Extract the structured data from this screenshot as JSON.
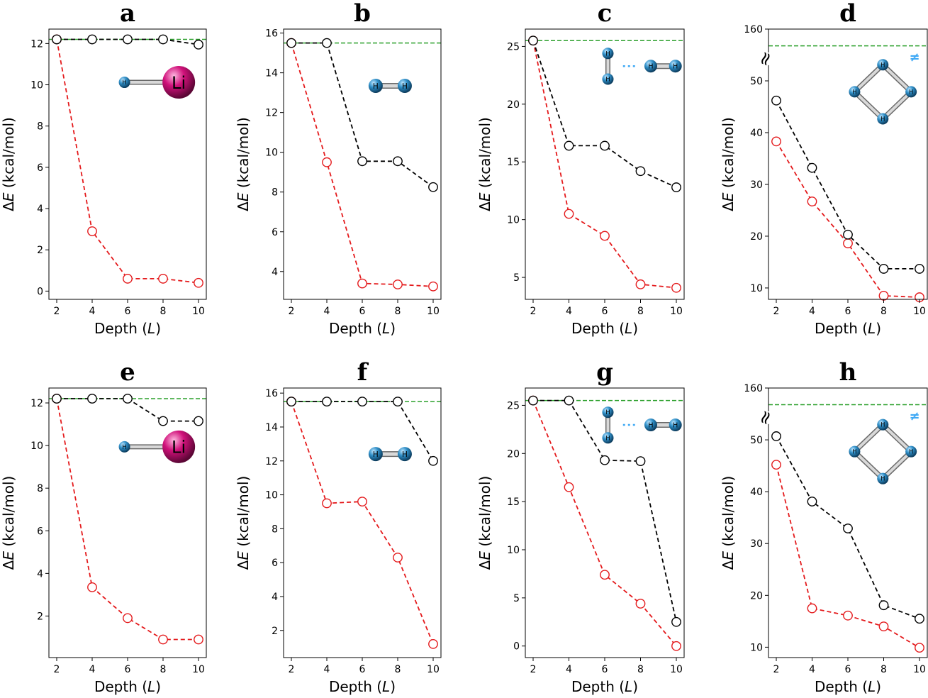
{
  "colors": {
    "series_a": "#e41a1c",
    "series_b": "#000000",
    "reference": "#2ca02c",
    "atom_h": "#2f8fc8",
    "atom_li": "#d0107a",
    "ts_mark": "#3fa9f5"
  },
  "chart_data": [
    {
      "type": "line",
      "panel": "a",
      "title": "a",
      "xlabel": "Depth (L)",
      "ylabel": "ΔE (kcal/mol)",
      "x": [
        2,
        4,
        6,
        8,
        10
      ],
      "xticks": [
        "2",
        "4",
        "6",
        "8",
        "10"
      ],
      "ylim": [
        -0.4,
        12.7
      ],
      "yticks": [
        0,
        2,
        4,
        6,
        8,
        10,
        12
      ],
      "ytick_labels": [
        "0",
        "2",
        "4",
        "6",
        "8",
        "10",
        "12"
      ],
      "reference_line": 12.2,
      "series": [
        {
          "name": "red",
          "values": [
            12.2,
            2.9,
            0.6,
            0.6,
            0.4
          ]
        },
        {
          "name": "black",
          "values": [
            12.2,
            12.2,
            12.2,
            12.2,
            11.95
          ]
        }
      ],
      "molecule": "LiH",
      "atom_labels": [
        "H",
        "Li"
      ]
    },
    {
      "type": "line",
      "panel": "b",
      "title": "b",
      "xlabel": "Depth (L)",
      "ylabel": "ΔE (kcal/mol)",
      "x": [
        2,
        4,
        6,
        8,
        10
      ],
      "xticks": [
        "2",
        "4",
        "6",
        "8",
        "10"
      ],
      "ylim": [
        2.6,
        16.2
      ],
      "yticks": [
        4,
        6,
        8,
        10,
        12,
        14,
        16
      ],
      "ytick_labels": [
        "4",
        "6",
        "8",
        "10",
        "12",
        "14",
        "16"
      ],
      "reference_line": 15.5,
      "series": [
        {
          "name": "red",
          "values": [
            15.5,
            9.5,
            3.4,
            3.35,
            3.25
          ]
        },
        {
          "name": "black",
          "values": [
            15.5,
            15.5,
            9.55,
            9.55,
            8.25
          ]
        }
      ],
      "molecule": "H2",
      "atom_labels": [
        "H",
        "H"
      ]
    },
    {
      "type": "line",
      "panel": "c",
      "title": "c",
      "xlabel": "Depth (L)",
      "ylabel": "ΔE (kcal/mol)",
      "x": [
        2,
        4,
        6,
        8,
        10
      ],
      "xticks": [
        "2",
        "4",
        "6",
        "8",
        "10"
      ],
      "ylim": [
        3.1,
        26.5
      ],
      "yticks": [
        5,
        10,
        15,
        20,
        25
      ],
      "ytick_labels": [
        "5",
        "10",
        "15",
        "20",
        "25"
      ],
      "reference_line": 25.5,
      "series": [
        {
          "name": "red",
          "values": [
            25.5,
            10.5,
            8.6,
            4.4,
            4.1
          ]
        },
        {
          "name": "black",
          "values": [
            25.5,
            16.4,
            16.4,
            14.2,
            12.8
          ]
        }
      ],
      "molecule": "H2...H2",
      "atom_labels": [
        "H",
        "H",
        "H",
        "H"
      ]
    },
    {
      "type": "line",
      "panel": "d",
      "title": "d",
      "xlabel": "Depth (L)",
      "ylabel": "ΔE (kcal/mol)",
      "x": [
        2,
        4,
        6,
        8,
        10
      ],
      "xticks": [
        "2",
        "4",
        "6",
        "8",
        "10"
      ],
      "ylim": [
        7.8,
        60
      ],
      "yticks": [
        10,
        20,
        30,
        40,
        50
      ],
      "ytick_labels": [
        "10",
        "20",
        "30",
        "40",
        "50"
      ],
      "broken_top_label": "160",
      "broken_axis_marker": "≈",
      "reference_value": 157.5,
      "ts_mark": "≠",
      "series": [
        {
          "name": "red",
          "values": [
            38.3,
            26.7,
            18.6,
            8.5,
            8.2
          ]
        },
        {
          "name": "black",
          "values": [
            46.2,
            33.2,
            20.3,
            13.7,
            13.7
          ]
        }
      ],
      "molecule": "H4 square",
      "atom_labels": [
        "H",
        "H",
        "H",
        "H"
      ]
    },
    {
      "type": "line",
      "panel": "e",
      "title": "e",
      "xlabel": "Depth (L)",
      "ylabel": "ΔE (kcal/mol)",
      "x": [
        2,
        4,
        6,
        8,
        10
      ],
      "xticks": [
        "2",
        "4",
        "6",
        "8",
        "10"
      ],
      "ylim": [
        0.05,
        12.7
      ],
      "yticks": [
        2,
        4,
        6,
        8,
        10,
        12
      ],
      "ytick_labels": [
        "2",
        "4",
        "6",
        "8",
        "10",
        "12"
      ],
      "reference_line": 12.2,
      "series": [
        {
          "name": "red",
          "values": [
            12.2,
            3.35,
            1.9,
            0.9,
            0.9
          ]
        },
        {
          "name": "black",
          "values": [
            12.2,
            12.2,
            12.2,
            11.15,
            11.15
          ]
        }
      ],
      "molecule": "LiH",
      "atom_labels": [
        "H",
        "Li"
      ]
    },
    {
      "type": "line",
      "panel": "f",
      "title": "f",
      "xlabel": "Depth (L)",
      "ylabel": "ΔE (kcal/mol)",
      "x": [
        2,
        4,
        6,
        8,
        10
      ],
      "xticks": [
        "2",
        "4",
        "6",
        "8",
        "10"
      ],
      "ylim": [
        0.4,
        16.3
      ],
      "yticks": [
        2,
        4,
        6,
        8,
        10,
        12,
        14,
        16
      ],
      "ytick_labels": [
        "2",
        "4",
        "6",
        "8",
        "10",
        "12",
        "14",
        "16"
      ],
      "reference_line": 15.5,
      "series": [
        {
          "name": "red",
          "values": [
            15.5,
            9.5,
            9.6,
            6.3,
            1.2
          ]
        },
        {
          "name": "black",
          "values": [
            15.5,
            15.5,
            15.5,
            15.5,
            12.0
          ]
        }
      ],
      "molecule": "H2",
      "atom_labels": [
        "H",
        "H"
      ]
    },
    {
      "type": "line",
      "panel": "g",
      "title": "g",
      "xlabel": "Depth (L)",
      "ylabel": "ΔE (kcal/mol)",
      "x": [
        2,
        4,
        6,
        8,
        10
      ],
      "xticks": [
        "2",
        "4",
        "6",
        "8",
        "10"
      ],
      "ylim": [
        -1.2,
        26.8
      ],
      "yticks": [
        0,
        5,
        10,
        15,
        20,
        25
      ],
      "ytick_labels": [
        "0",
        "5",
        "10",
        "15",
        "20",
        "25"
      ],
      "reference_line": 25.5,
      "series": [
        {
          "name": "red",
          "values": [
            25.5,
            16.5,
            7.4,
            4.4,
            0.0
          ]
        },
        {
          "name": "black",
          "values": [
            25.5,
            25.5,
            19.3,
            19.2,
            2.5
          ]
        }
      ],
      "molecule": "H2...H2",
      "atom_labels": [
        "H",
        "H",
        "H",
        "H"
      ]
    },
    {
      "type": "line",
      "panel": "h",
      "title": "h",
      "xlabel": "Depth (L)",
      "ylabel": "ΔE (kcal/mol)",
      "x": [
        2,
        4,
        6,
        8,
        10
      ],
      "xticks": [
        "2",
        "4",
        "6",
        "8",
        "10"
      ],
      "ylim": [
        8.0,
        60
      ],
      "yticks": [
        10,
        20,
        30,
        40,
        50
      ],
      "ytick_labels": [
        "10",
        "20",
        "30",
        "40",
        "50"
      ],
      "broken_top_label": "160",
      "broken_axis_marker": "≈",
      "reference_value": 157.5,
      "ts_mark": "≠",
      "series": [
        {
          "name": "red",
          "values": [
            45.2,
            17.5,
            16.1,
            14.0,
            9.9
          ]
        },
        {
          "name": "black",
          "values": [
            50.7,
            38.1,
            32.9,
            18.1,
            15.5
          ]
        }
      ],
      "molecule": "H4 square",
      "atom_labels": [
        "H",
        "H",
        "H",
        "H"
      ]
    }
  ]
}
